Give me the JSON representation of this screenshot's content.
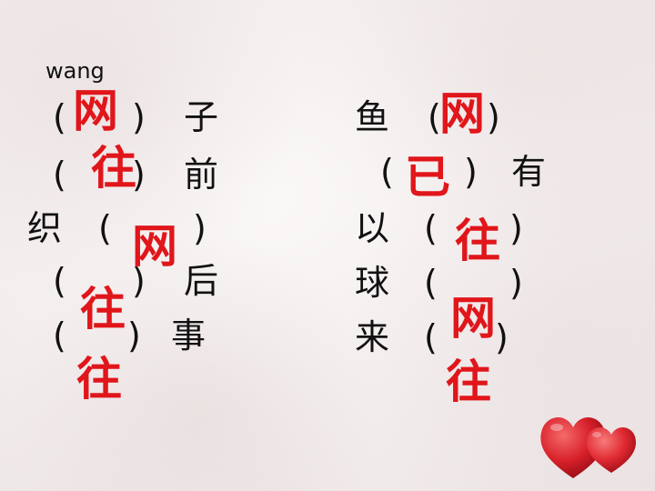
{
  "pinyin": "wang",
  "left": {
    "rows": [
      {
        "open": "(",
        "close": ")",
        "word": "子"
      },
      {
        "open": "(",
        "close": ")",
        "word": "前"
      },
      {
        "prefix": "织",
        "open": "(",
        "close": ")"
      },
      {
        "open": "(",
        "close": ")",
        "word": "后"
      },
      {
        "open": "(",
        "close": ")",
        "word": "事"
      }
    ],
    "answers": [
      "网",
      "往",
      "网",
      "往",
      "往"
    ]
  },
  "right": {
    "rows": [
      {
        "prefix": "鱼",
        "open": "(",
        "close": ")"
      },
      {
        "open": "(",
        "close": ")",
        "word": "有"
      },
      {
        "prefix": "以",
        "open": "(",
        "close": ")"
      },
      {
        "prefix": "球",
        "open": "(",
        "close": ")"
      },
      {
        "prefix": "来",
        "open": "(",
        "close": ")"
      }
    ],
    "answers": [
      "网",
      "已",
      "往",
      "网",
      "往"
    ]
  },
  "colors": {
    "answer": "#e0161b",
    "text": "#111111",
    "heart": "#d8202a"
  },
  "decoration": {
    "icon": "hearts-icon"
  }
}
